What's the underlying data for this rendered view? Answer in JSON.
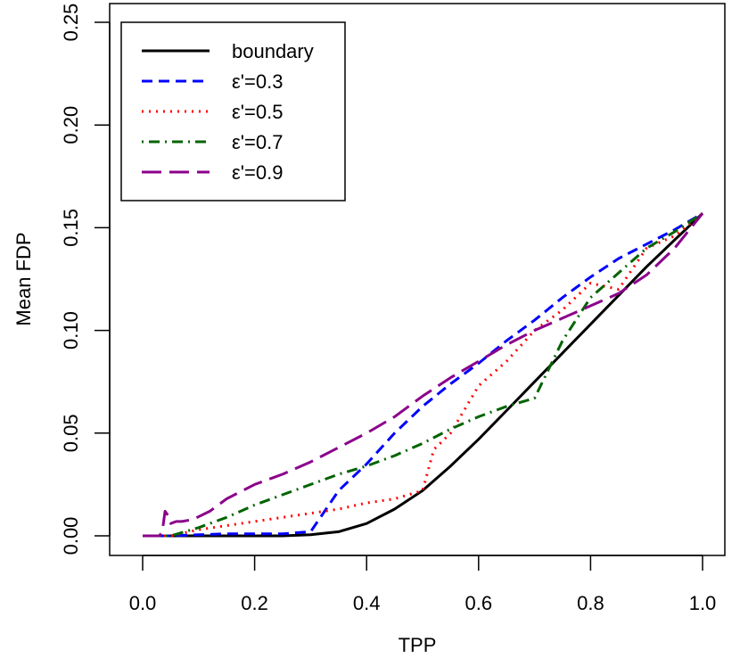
{
  "chart_data": {
    "type": "line",
    "title": "",
    "xlabel": "TPP",
    "ylabel": "Mean FDP",
    "xlim": [
      0.0,
      1.0
    ],
    "ylim": [
      0.0,
      0.25
    ],
    "xticks": [
      0.0,
      0.2,
      0.4,
      0.6,
      0.8,
      1.0
    ],
    "xtick_labels": [
      "0.0",
      "0.2",
      "0.4",
      "0.6",
      "0.8",
      "1.0"
    ],
    "yticks": [
      0.0,
      0.05,
      0.1,
      0.15,
      0.2,
      0.25
    ],
    "ytick_labels": [
      "0.00",
      "0.05",
      "0.10",
      "0.15",
      "0.20",
      "0.25"
    ],
    "grid": false,
    "legend_position": "top-left",
    "series": [
      {
        "name": "boundary",
        "color": "#000000",
        "dash": "solid",
        "x": [
          0.0,
          0.25,
          0.3,
          0.35,
          0.4,
          0.45,
          0.5,
          0.55,
          0.6,
          0.65,
          0.7,
          0.75,
          0.8,
          0.85,
          0.9,
          0.95,
          1.0
        ],
        "y": [
          0.0,
          0.0,
          0.0005,
          0.002,
          0.006,
          0.013,
          0.022,
          0.034,
          0.047,
          0.061,
          0.075,
          0.089,
          0.103,
          0.117,
          0.131,
          0.144,
          0.157
        ]
      },
      {
        "name": "ε'=0.3",
        "color": "#0000ff",
        "dash": "dashed",
        "x": [
          0.0,
          0.05,
          0.1,
          0.15,
          0.2,
          0.25,
          0.3,
          0.32,
          0.35,
          0.4,
          0.45,
          0.5,
          0.55,
          0.6,
          0.65,
          0.7,
          0.75,
          0.8,
          0.85,
          0.9,
          0.95,
          1.0
        ],
        "y": [
          0.0,
          0.0,
          0.0005,
          0.001,
          0.001,
          0.001,
          0.002,
          0.01,
          0.022,
          0.035,
          0.05,
          0.063,
          0.074,
          0.084,
          0.095,
          0.105,
          0.116,
          0.126,
          0.135,
          0.142,
          0.149,
          0.157
        ]
      },
      {
        "name": "ε'=0.5",
        "color": "#ff0000",
        "dash": "dotted",
        "x": [
          0.0,
          0.05,
          0.1,
          0.15,
          0.2,
          0.25,
          0.3,
          0.35,
          0.4,
          0.45,
          0.5,
          0.52,
          0.55,
          0.6,
          0.65,
          0.7,
          0.75,
          0.8,
          0.85,
          0.9,
          0.95,
          1.0
        ],
        "y": [
          0.0,
          0.0,
          0.003,
          0.005,
          0.007,
          0.009,
          0.011,
          0.013,
          0.016,
          0.018,
          0.022,
          0.042,
          0.05,
          0.073,
          0.085,
          0.1,
          0.11,
          0.123,
          0.12,
          0.14,
          0.146,
          0.157
        ]
      },
      {
        "name": "ε'=0.7",
        "color": "#006400",
        "dash": "dotdash",
        "x": [
          0.0,
          0.05,
          0.1,
          0.15,
          0.2,
          0.25,
          0.3,
          0.35,
          0.4,
          0.45,
          0.5,
          0.55,
          0.6,
          0.65,
          0.7,
          0.75,
          0.8,
          0.85,
          0.9,
          0.95,
          1.0
        ],
        "y": [
          0.0,
          0.0,
          0.004,
          0.009,
          0.015,
          0.02,
          0.025,
          0.03,
          0.034,
          0.039,
          0.045,
          0.052,
          0.058,
          0.063,
          0.067,
          0.095,
          0.116,
          0.128,
          0.14,
          0.148,
          0.157
        ]
      },
      {
        "name": "ε'=0.9",
        "color": "#8b008b",
        "dash": "longdash",
        "x": [
          0.0,
          0.03,
          0.035,
          0.04,
          0.045,
          0.05,
          0.06,
          0.07,
          0.09,
          0.12,
          0.15,
          0.2,
          0.25,
          0.3,
          0.35,
          0.4,
          0.45,
          0.5,
          0.55,
          0.6,
          0.65,
          0.7,
          0.75,
          0.8,
          0.85,
          0.9,
          0.95,
          1.0
        ],
        "y": [
          0.0,
          0.0,
          0.002,
          0.012,
          0.01,
          0.006,
          0.007,
          0.007,
          0.008,
          0.012,
          0.018,
          0.025,
          0.03,
          0.036,
          0.043,
          0.05,
          0.058,
          0.068,
          0.077,
          0.085,
          0.093,
          0.1,
          0.106,
          0.112,
          0.118,
          0.127,
          0.14,
          0.157
        ]
      }
    ]
  }
}
